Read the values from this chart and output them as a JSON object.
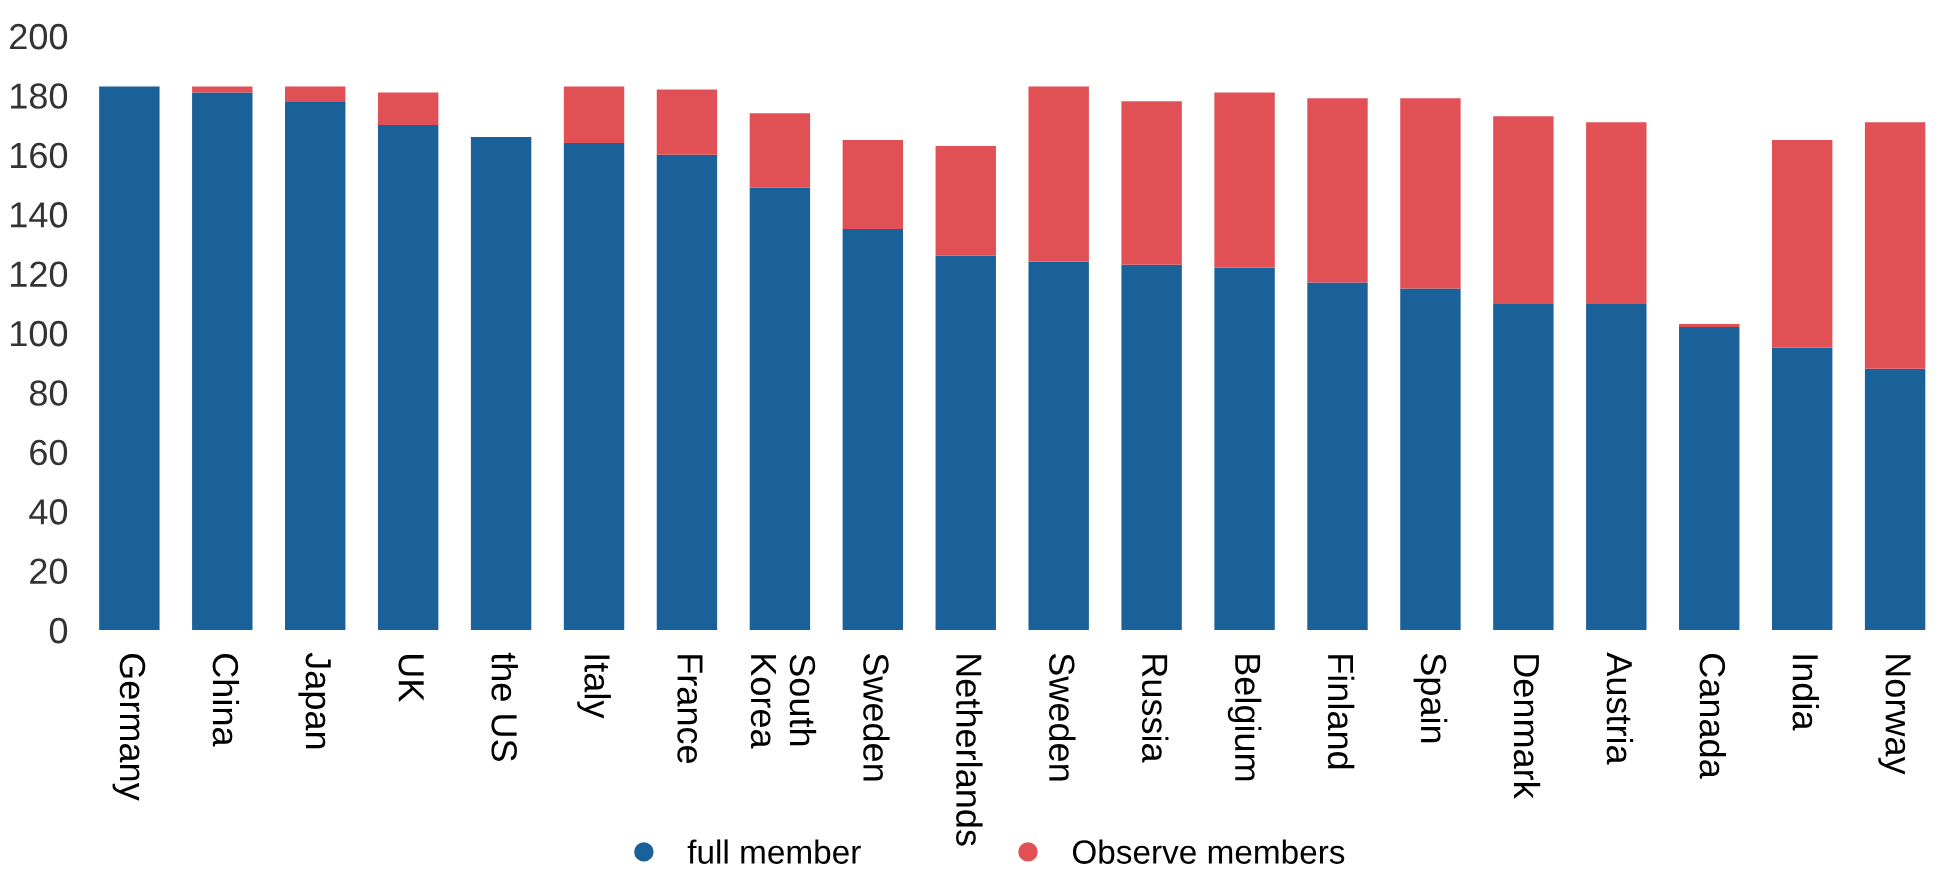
{
  "chart_data": {
    "type": "bar",
    "stacked": true,
    "categories": [
      "Germany",
      "China",
      "Japan",
      "UK",
      "the US",
      "Italy",
      "France",
      "South\nKorea",
      "Sweden",
      "Netherlands",
      "Sweden",
      "Russia",
      "Belgium",
      "Finland",
      "Spain",
      "Denmark",
      "Austria",
      "Canada",
      "India",
      "Norway"
    ],
    "series": [
      {
        "name": "full member",
        "color": "#1a6199",
        "values": [
          183,
          181,
          178,
          170,
          166,
          164,
          160,
          149,
          135,
          126,
          124,
          123,
          122,
          117,
          115,
          110,
          110,
          102,
          95,
          88
        ]
      },
      {
        "name": "Observe members",
        "color": "#e05055",
        "values": [
          0,
          2,
          5,
          11,
          0,
          19,
          22,
          25,
          30,
          37,
          59,
          55,
          59,
          62,
          64,
          63,
          61,
          1,
          70,
          83
        ]
      }
    ],
    "ylim": [
      0,
      200
    ],
    "yticks": [
      0,
      20,
      40,
      60,
      80,
      100,
      120,
      140,
      160,
      180,
      200
    ],
    "grid": false,
    "legend": "bottom",
    "marker": "circle"
  }
}
